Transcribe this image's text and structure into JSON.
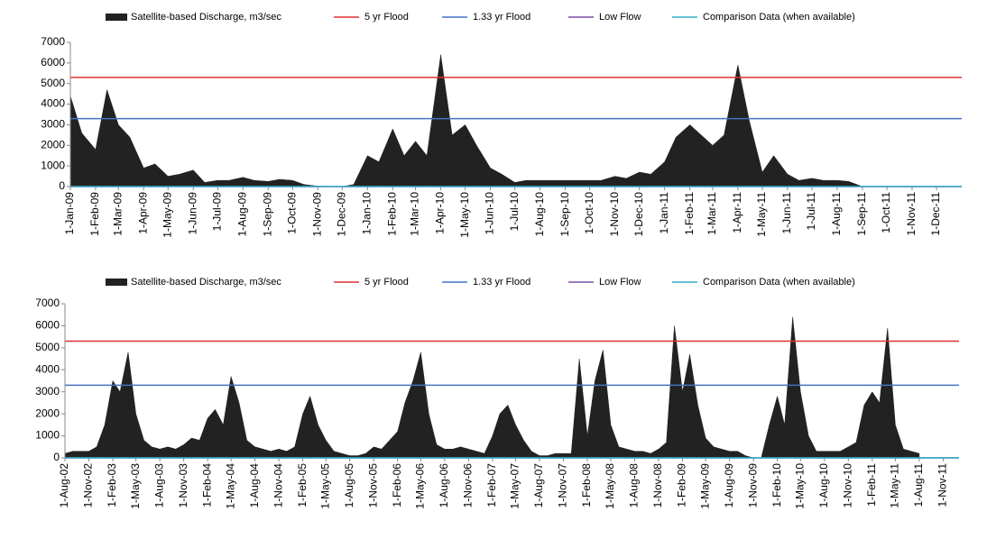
{
  "chart_data": [
    {
      "type": "area",
      "x": [
        "2009-01-01",
        "2009-01-15",
        "2009-02-01",
        "2009-02-15",
        "2009-03-01",
        "2009-03-15",
        "2009-04-01",
        "2009-04-15",
        "2009-05-01",
        "2009-05-15",
        "2009-06-01",
        "2009-06-15",
        "2009-07-01",
        "2009-07-15",
        "2009-08-01",
        "2009-08-15",
        "2009-09-01",
        "2009-09-15",
        "2009-10-01",
        "2009-10-15",
        "2009-11-01",
        "2009-11-15",
        "2009-12-01",
        "2009-12-15",
        "2010-01-01",
        "2010-01-15",
        "2010-02-01",
        "2010-02-15",
        "2010-03-01",
        "2010-03-15",
        "2010-04-01",
        "2010-04-15",
        "2010-05-01",
        "2010-05-15",
        "2010-06-01",
        "2010-06-15",
        "2010-07-01",
        "2010-07-15",
        "2010-08-01",
        "2010-08-15",
        "2010-09-01",
        "2010-09-15",
        "2010-10-01",
        "2010-10-15",
        "2010-11-01",
        "2010-11-15",
        "2010-12-01",
        "2010-12-15",
        "2011-01-01",
        "2011-01-15",
        "2011-02-01",
        "2011-02-15",
        "2011-03-01",
        "2011-03-15",
        "2011-04-01",
        "2011-04-15",
        "2011-05-01",
        "2011-05-15",
        "2011-06-01",
        "2011-06-15",
        "2011-07-01",
        "2011-07-15",
        "2011-08-01",
        "2011-08-15",
        "2011-09-01"
      ],
      "series": [
        {
          "name": "Satellite-based Discharge, m3/sec",
          "color": "#222222",
          "values": [
            4400,
            2600,
            1800,
            4700,
            3000,
            2400,
            900,
            1100,
            500,
            600,
            800,
            200,
            300,
            300,
            450,
            300,
            250,
            350,
            300,
            100,
            20,
            10,
            0,
            100,
            1500,
            1200,
            2800,
            1500,
            2200,
            1500,
            6400,
            2500,
            3000,
            2000,
            900,
            600,
            200,
            300,
            300,
            300,
            300,
            300,
            300,
            300,
            500,
            400,
            700,
            600,
            1200,
            2400,
            3000,
            2500,
            2000,
            2500,
            5900,
            3200,
            700,
            1500,
            600,
            300,
            400,
            300,
            300,
            250,
            0
          ]
        },
        {
          "name": "5 yr Flood",
          "color": "#e03030",
          "value": 5300
        },
        {
          "name": "1.33 yr Flood",
          "color": "#4472c4",
          "value": 3300
        },
        {
          "name": "Low Flow",
          "color": "#7b4fa8",
          "value": 0
        },
        {
          "name": "Comparison Data (when available)",
          "color": "#31b0c8",
          "value": 0
        }
      ],
      "xlim": [
        "2009-01-01",
        "2012-01-01"
      ],
      "xticks": [
        {
          "value": "2009-01-01",
          "label": "1-Jan-09"
        },
        {
          "value": "2009-02-01",
          "label": "1-Feb-09"
        },
        {
          "value": "2009-03-01",
          "label": "1-Mar-09"
        },
        {
          "value": "2009-04-01",
          "label": "1-Apr-09"
        },
        {
          "value": "2009-05-01",
          "label": "1-May-09"
        },
        {
          "value": "2009-06-01",
          "label": "1-Jun-09"
        },
        {
          "value": "2009-07-01",
          "label": "1-Jul-09"
        },
        {
          "value": "2009-08-01",
          "label": "1-Aug-09"
        },
        {
          "value": "2009-09-01",
          "label": "1-Sep-09"
        },
        {
          "value": "2009-10-01",
          "label": "1-Oct-09"
        },
        {
          "value": "2009-11-01",
          "label": "1-Nov-09"
        },
        {
          "value": "2009-12-01",
          "label": "1-Dec-09"
        },
        {
          "value": "2010-01-01",
          "label": "1-Jan-10"
        },
        {
          "value": "2010-02-01",
          "label": "1-Feb-10"
        },
        {
          "value": "2010-03-01",
          "label": "1-Mar-10"
        },
        {
          "value": "2010-04-01",
          "label": "1-Apr-10"
        },
        {
          "value": "2010-05-01",
          "label": "1-May-10"
        },
        {
          "value": "2010-06-01",
          "label": "1-Jun-10"
        },
        {
          "value": "2010-07-01",
          "label": "1-Jul-10"
        },
        {
          "value": "2010-08-01",
          "label": "1-Aug-10"
        },
        {
          "value": "2010-09-01",
          "label": "1-Sep-10"
        },
        {
          "value": "2010-10-01",
          "label": "1-Oct-10"
        },
        {
          "value": "2010-11-01",
          "label": "1-Nov-10"
        },
        {
          "value": "2010-12-01",
          "label": "1-Dec-10"
        },
        {
          "value": "2011-01-01",
          "label": "1-Jan-11"
        },
        {
          "value": "2011-02-01",
          "label": "1-Feb-11"
        },
        {
          "value": "2011-03-01",
          "label": "1-Mar-11"
        },
        {
          "value": "2011-04-01",
          "label": "1-Apr-11"
        },
        {
          "value": "2011-05-01",
          "label": "1-May-11"
        },
        {
          "value": "2011-06-01",
          "label": "1-Jun-11"
        },
        {
          "value": "2011-07-01",
          "label": "1-Jul-11"
        },
        {
          "value": "2011-08-01",
          "label": "1-Aug-11"
        },
        {
          "value": "2011-09-01",
          "label": "1-Sep-11"
        },
        {
          "value": "2011-10-01",
          "label": "1-Oct-11"
        },
        {
          "value": "2011-11-01",
          "label": "1-Nov-11"
        },
        {
          "value": "2011-12-01",
          "label": "1-Dec-11"
        }
      ],
      "ylim": [
        0,
        7000
      ],
      "yticks": [
        0,
        1000,
        2000,
        3000,
        4000,
        5000,
        6000,
        7000
      ]
    },
    {
      "type": "area",
      "x": [
        "2002-08-01",
        "2002-09-01",
        "2002-10-01",
        "2002-11-01",
        "2002-12-01",
        "2003-01-01",
        "2003-02-01",
        "2003-03-01",
        "2003-04-01",
        "2003-05-01",
        "2003-06-01",
        "2003-07-01",
        "2003-08-01",
        "2003-09-01",
        "2003-10-01",
        "2003-11-01",
        "2003-12-01",
        "2004-01-01",
        "2004-02-01",
        "2004-03-01",
        "2004-04-01",
        "2004-05-01",
        "2004-06-01",
        "2004-07-01",
        "2004-08-01",
        "2004-09-01",
        "2004-10-01",
        "2004-11-01",
        "2004-12-01",
        "2005-01-01",
        "2005-02-01",
        "2005-03-01",
        "2005-04-01",
        "2005-05-01",
        "2005-06-01",
        "2005-07-01",
        "2005-08-01",
        "2005-09-01",
        "2005-10-01",
        "2005-11-01",
        "2005-12-01",
        "2006-01-01",
        "2006-02-01",
        "2006-03-01",
        "2006-04-01",
        "2006-05-01",
        "2006-06-01",
        "2006-07-01",
        "2006-08-01",
        "2006-09-01",
        "2006-10-01",
        "2006-11-01",
        "2006-12-01",
        "2007-01-01",
        "2007-02-01",
        "2007-03-01",
        "2007-04-01",
        "2007-05-01",
        "2007-06-01",
        "2007-07-01",
        "2007-08-01",
        "2007-09-01",
        "2007-10-01",
        "2007-11-01",
        "2007-12-01",
        "2008-01-01",
        "2008-02-01",
        "2008-03-01",
        "2008-04-01",
        "2008-05-01",
        "2008-06-01",
        "2008-07-01",
        "2008-08-01",
        "2008-09-01",
        "2008-10-01",
        "2008-11-01",
        "2008-12-01",
        "2009-01-01",
        "2009-02-01",
        "2009-03-01",
        "2009-04-01",
        "2009-05-01",
        "2009-06-01",
        "2009-07-01",
        "2009-08-01",
        "2009-09-01",
        "2009-10-01",
        "2009-11-01",
        "2009-12-01",
        "2010-01-01",
        "2010-02-01",
        "2010-03-01",
        "2010-04-01",
        "2010-05-01",
        "2010-06-01",
        "2010-07-01",
        "2010-08-01",
        "2010-09-01",
        "2010-10-01",
        "2010-11-01",
        "2010-12-01",
        "2011-01-01",
        "2011-02-01",
        "2011-03-01",
        "2011-04-01",
        "2011-05-01",
        "2011-06-01",
        "2011-07-01",
        "2011-08-01"
      ],
      "series": [
        {
          "name": "Satellite-based Discharge, m3/sec",
          "color": "#222222",
          "values": [
            200,
            300,
            300,
            300,
            500,
            1500,
            3500,
            3000,
            4800,
            2000,
            800,
            500,
            400,
            500,
            400,
            600,
            900,
            800,
            1800,
            2200,
            1500,
            3700,
            2500,
            800,
            500,
            400,
            300,
            400,
            300,
            500,
            2000,
            2800,
            1500,
            800,
            300,
            200,
            100,
            100,
            200,
            500,
            400,
            800,
            1200,
            2500,
            3500,
            4800,
            2000,
            600,
            400,
            400,
            500,
            400,
            300,
            200,
            1000,
            2000,
            2400,
            1500,
            800,
            300,
            100,
            100,
            200,
            200,
            200,
            4500,
            1000,
            3500,
            4900,
            1500,
            500,
            400,
            300,
            300,
            200,
            400,
            700,
            6000,
            3000,
            4700,
            2400,
            900,
            500,
            400,
            300,
            300,
            100,
            0,
            0,
            1500,
            2800,
            1500,
            6400,
            3000,
            1000,
            300,
            300,
            300,
            300,
            500,
            700,
            2400,
            3000,
            2500,
            5900,
            1500,
            400,
            300,
            200
          ]
        },
        {
          "name": "5 yr Flood",
          "color": "#e03030",
          "value": 5300
        },
        {
          "name": "1.33 yr Flood",
          "color": "#4472c4",
          "value": 3300
        },
        {
          "name": "Low Flow",
          "color": "#7b4fa8",
          "value": 0
        },
        {
          "name": "Comparison Data (when available)",
          "color": "#31b0c8",
          "value": 0
        }
      ],
      "xlim": [
        "2002-08-01",
        "2012-01-01"
      ],
      "xticks": [
        {
          "value": "2002-08-01",
          "label": "1-Aug-02"
        },
        {
          "value": "2002-11-01",
          "label": "1-Nov-02"
        },
        {
          "value": "2003-02-01",
          "label": "1-Feb-03"
        },
        {
          "value": "2003-05-01",
          "label": "1-May-03"
        },
        {
          "value": "2003-08-01",
          "label": "1-Aug-03"
        },
        {
          "value": "2003-11-01",
          "label": "1-Nov-03"
        },
        {
          "value": "2004-02-01",
          "label": "1-Feb-04"
        },
        {
          "value": "2004-05-01",
          "label": "1-May-04"
        },
        {
          "value": "2004-08-01",
          "label": "1-Aug-04"
        },
        {
          "value": "2004-11-01",
          "label": "1-Nov-04"
        },
        {
          "value": "2005-02-01",
          "label": "1-Feb-05"
        },
        {
          "value": "2005-05-01",
          "label": "1-May-05"
        },
        {
          "value": "2005-08-01",
          "label": "1-Aug-05"
        },
        {
          "value": "2005-11-01",
          "label": "1-Nov-05"
        },
        {
          "value": "2006-02-01",
          "label": "1-Feb-06"
        },
        {
          "value": "2006-05-01",
          "label": "1-May-06"
        },
        {
          "value": "2006-08-01",
          "label": "1-Aug-06"
        },
        {
          "value": "2006-11-01",
          "label": "1-Nov-06"
        },
        {
          "value": "2007-02-01",
          "label": "1-Feb-07"
        },
        {
          "value": "2007-05-01",
          "label": "1-May-07"
        },
        {
          "value": "2007-08-01",
          "label": "1-Aug-07"
        },
        {
          "value": "2007-11-01",
          "label": "1-Nov-07"
        },
        {
          "value": "2008-02-01",
          "label": "1-Feb-08"
        },
        {
          "value": "2008-05-01",
          "label": "1-May-08"
        },
        {
          "value": "2008-08-01",
          "label": "1-Aug-08"
        },
        {
          "value": "2008-11-01",
          "label": "1-Nov-08"
        },
        {
          "value": "2009-02-01",
          "label": "1-Feb-09"
        },
        {
          "value": "2009-05-01",
          "label": "1-May-09"
        },
        {
          "value": "2009-08-01",
          "label": "1-Aug-09"
        },
        {
          "value": "2009-11-01",
          "label": "1-Nov-09"
        },
        {
          "value": "2010-02-01",
          "label": "1-Feb-10"
        },
        {
          "value": "2010-05-01",
          "label": "1-May-10"
        },
        {
          "value": "2010-08-01",
          "label": "1-Aug-10"
        },
        {
          "value": "2010-11-01",
          "label": "1-Nov-10"
        },
        {
          "value": "2011-02-01",
          "label": "1-Feb-11"
        },
        {
          "value": "2011-05-01",
          "label": "1-May-11"
        },
        {
          "value": "2011-08-01",
          "label": "1-Aug-11"
        },
        {
          "value": "2011-11-01",
          "label": "1-Nov-11"
        }
      ],
      "ylim": [
        0,
        7000
      ],
      "yticks": [
        0,
        1000,
        2000,
        3000,
        4000,
        5000,
        6000,
        7000
      ]
    }
  ]
}
